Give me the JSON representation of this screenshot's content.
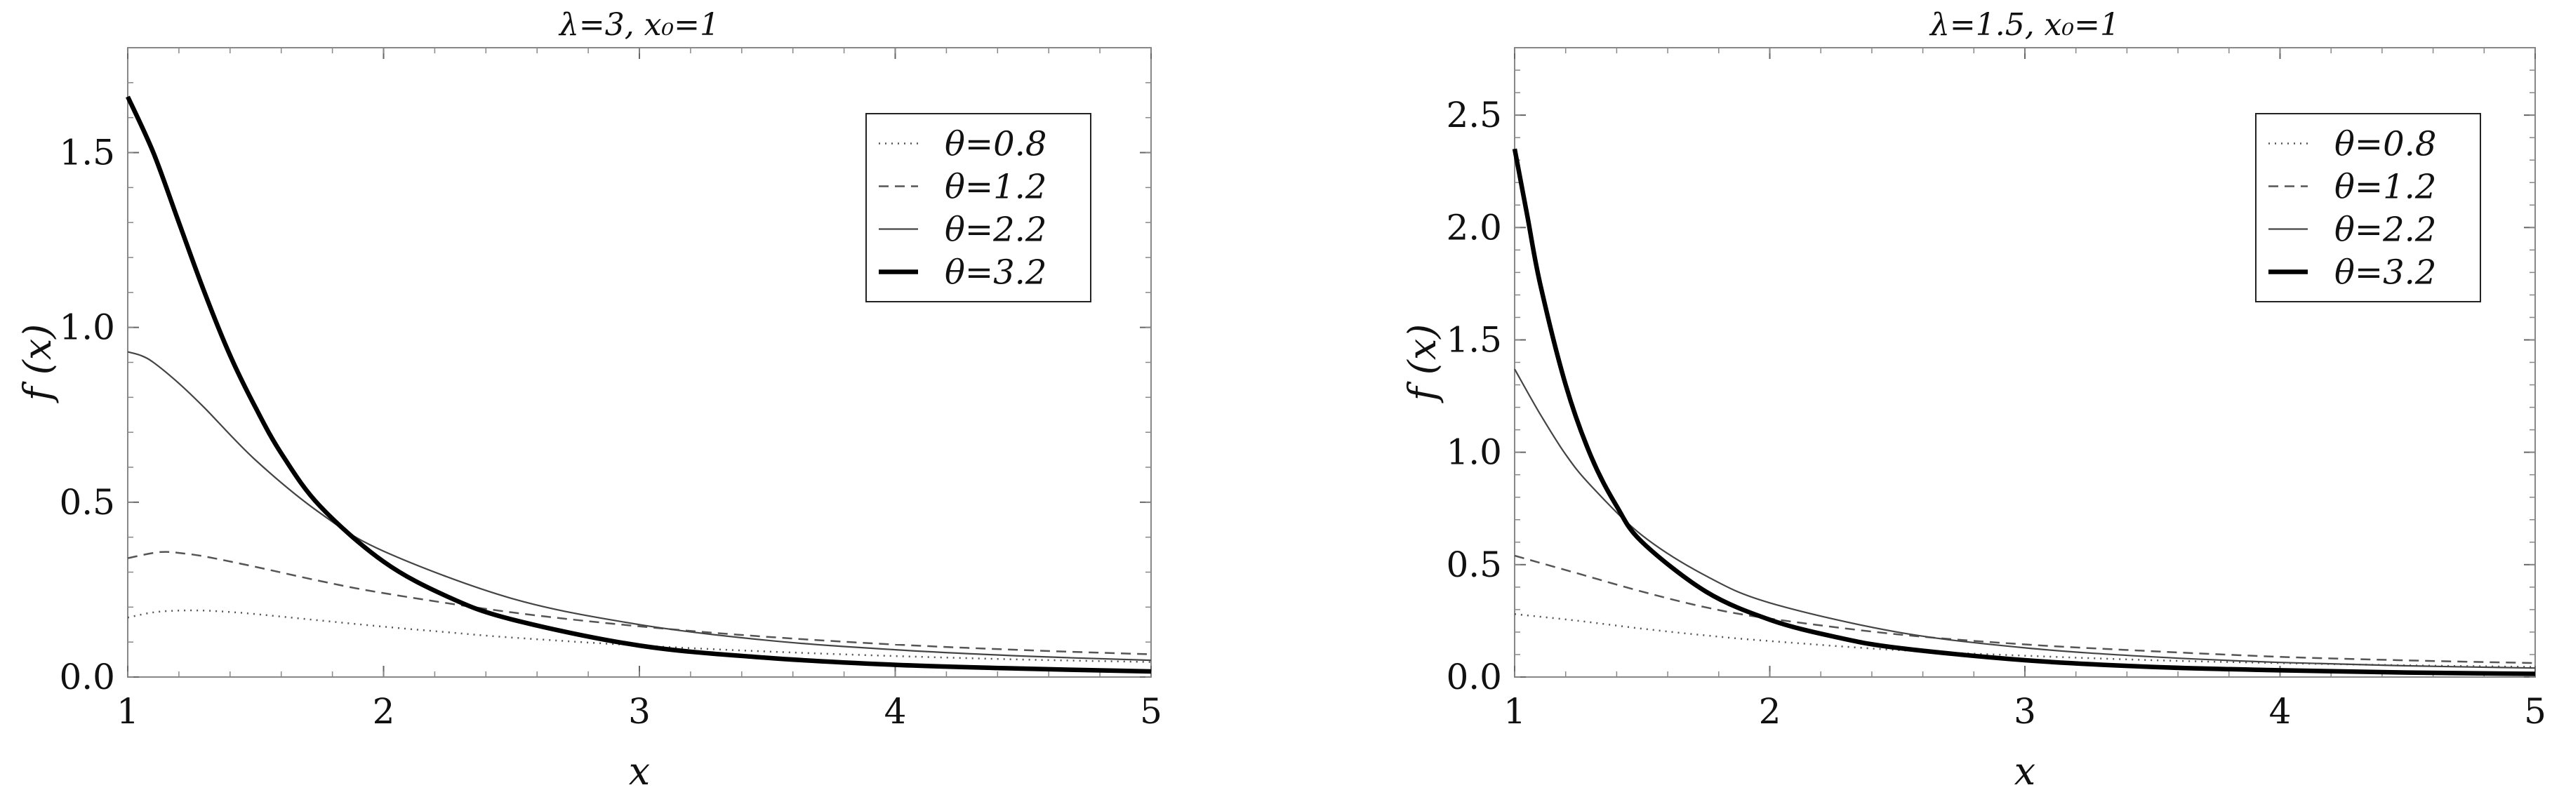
{
  "chart_data": [
    {
      "type": "line",
      "title": "λ=3, x₀=1",
      "xlabel": "x",
      "ylabel": "f (x)",
      "xlim": [
        1,
        5
      ],
      "ylim": [
        0,
        1.8
      ],
      "xticks": [
        "1",
        "2",
        "3",
        "4",
        "5"
      ],
      "yticks": [
        "0.0",
        "0.5",
        "1.0",
        "1.5"
      ],
      "legend_position": "top-right",
      "grid": false,
      "series": [
        {
          "name": "θ=0.8",
          "style": "dotted",
          "x": [
            1.0,
            1.1,
            1.2,
            1.3,
            1.4,
            1.5,
            1.75,
            2.0,
            2.25,
            2.5,
            3.0,
            3.5,
            4.0,
            4.5,
            5.0
          ],
          "y": [
            0.17,
            0.185,
            0.19,
            0.19,
            0.186,
            0.18,
            0.162,
            0.144,
            0.128,
            0.113,
            0.09,
            0.073,
            0.06,
            0.05,
            0.043
          ]
        },
        {
          "name": "θ=1.2",
          "style": "dashed",
          "x": [
            1.0,
            1.1,
            1.15,
            1.2,
            1.3,
            1.5,
            1.75,
            2.0,
            2.5,
            3.0,
            3.5,
            4.0,
            4.5,
            5.0
          ],
          "y": [
            0.34,
            0.355,
            0.358,
            0.355,
            0.345,
            0.315,
            0.275,
            0.24,
            0.185,
            0.145,
            0.115,
            0.093,
            0.077,
            0.065
          ]
        },
        {
          "name": "θ=2.2",
          "style": "thin-solid",
          "x": [
            1.0,
            1.05,
            1.1,
            1.2,
            1.3,
            1.5,
            1.75,
            2.0,
            2.5,
            3.0,
            3.5,
            4.0,
            4.5,
            5.0
          ],
          "y": [
            0.93,
            0.92,
            0.9,
            0.84,
            0.77,
            0.62,
            0.47,
            0.36,
            0.225,
            0.15,
            0.105,
            0.078,
            0.06,
            0.048
          ]
        },
        {
          "name": "θ=3.2",
          "style": "thick-solid",
          "x": [
            1.0,
            1.1,
            1.2,
            1.3,
            1.4,
            1.5,
            1.6,
            1.75,
            2.0,
            2.25,
            2.5,
            3.0,
            3.5,
            4.0,
            4.5,
            5.0
          ],
          "y": [
            1.66,
            1.5,
            1.3,
            1.1,
            0.92,
            0.77,
            0.64,
            0.49,
            0.33,
            0.23,
            0.165,
            0.09,
            0.055,
            0.035,
            0.024,
            0.016
          ]
        }
      ]
    },
    {
      "type": "line",
      "title": "λ=1.5, x₀=1",
      "xlabel": "x",
      "ylabel": "f (x)",
      "xlim": [
        1,
        5
      ],
      "ylim": [
        0,
        2.8
      ],
      "xticks": [
        "1",
        "2",
        "3",
        "4",
        "5"
      ],
      "yticks": [
        "0.0",
        "0.5",
        "1.0",
        "1.5",
        "2.0",
        "2.5"
      ],
      "legend_position": "top-right",
      "grid": false,
      "series": [
        {
          "name": "θ=0.8",
          "style": "dotted",
          "x": [
            1.0,
            1.25,
            1.5,
            1.75,
            2.0,
            2.5,
            3.0,
            3.5,
            4.0,
            4.5,
            5.0
          ],
          "y": [
            0.28,
            0.25,
            0.215,
            0.185,
            0.16,
            0.12,
            0.095,
            0.075,
            0.062,
            0.052,
            0.045
          ]
        },
        {
          "name": "θ=1.2",
          "style": "dashed",
          "x": [
            1.0,
            1.25,
            1.5,
            1.75,
            2.0,
            2.5,
            3.0,
            3.5,
            4.0,
            4.5,
            5.0
          ],
          "y": [
            0.54,
            0.46,
            0.38,
            0.31,
            0.26,
            0.19,
            0.145,
            0.115,
            0.09,
            0.074,
            0.062
          ]
        },
        {
          "name": "θ=2.2",
          "style": "thin-solid",
          "x": [
            1.0,
            1.1,
            1.2,
            1.3,
            1.5,
            1.75,
            2.0,
            2.5,
            3.0,
            3.5,
            4.0,
            4.5,
            5.0
          ],
          "y": [
            1.37,
            1.17,
            0.99,
            0.85,
            0.63,
            0.45,
            0.33,
            0.2,
            0.13,
            0.09,
            0.065,
            0.05,
            0.04
          ]
        },
        {
          "name": "θ=3.2",
          "style": "thick-solid",
          "x": [
            1.0,
            1.05,
            1.1,
            1.2,
            1.3,
            1.4,
            1.5,
            1.75,
            2.0,
            2.25,
            2.5,
            3.0,
            3.5,
            4.0,
            4.5,
            5.0
          ],
          "y": [
            2.35,
            2.05,
            1.75,
            1.3,
            0.98,
            0.76,
            0.6,
            0.38,
            0.255,
            0.18,
            0.13,
            0.075,
            0.045,
            0.03,
            0.02,
            0.014
          ]
        }
      ]
    }
  ]
}
